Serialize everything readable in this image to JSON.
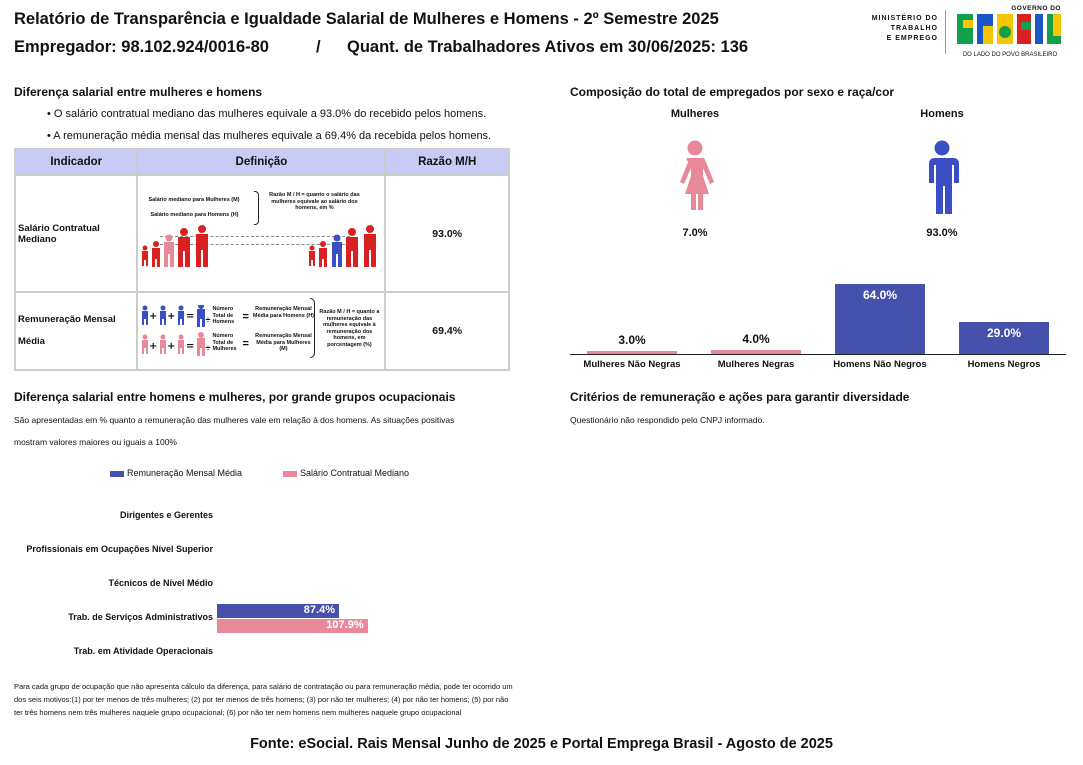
{
  "header": {
    "title": "Relatório de Transparência e Igualdade Salarial de Mulheres e Homens - 2º Semestre 2025",
    "employer": "Empregador: 98.102.924/0016-80",
    "separator": "/",
    "workers": "Quant. de Trabalhadores Ativos em 30/06/2025: 136"
  },
  "logos": {
    "ministry_line1": "MINISTÉRIO DO",
    "ministry_line2": "TRABALHO",
    "ministry_line3": "E EMPREGO",
    "gov_top": "GOVERNO DO",
    "gov_word": "BRASIL",
    "gov_bottom": "DO LADO DO POVO BRASILEIRO",
    "colors": {
      "green": "#12a04a",
      "yellow": "#f6c400",
      "blue": "#1b56c6",
      "red": "#d92121"
    }
  },
  "wage_gap": {
    "title": "Diferença salarial entre mulheres e homens",
    "bullet1": "• O salário contratual mediano das mulheres equivale a 93.0% do recebido pelos homens.",
    "bullet2": "• A remuneração média mensal das mulheres equivale a 69.4% da recebida pelos homens.",
    "table": {
      "headers": [
        "Indicador",
        "Definição",
        "Razão M/H"
      ],
      "rows": [
        {
          "indicator": "Salário Contratual Mediano",
          "ratio": "93.0%",
          "def_line1": "Salário mediano para Mulheres (M)",
          "def_line2": "Salário mediano para Homens (H)",
          "def_note": "Razão M / H = quanto o salário das mulheres equivale ao salário dos homens, em %"
        },
        {
          "indicator_line1": "Remuneração Mensal",
          "indicator_line2": "Média",
          "ratio": "69.4%",
          "def_num": "Número Total de Homens",
          "def_eq": "=",
          "def_div": "÷",
          "def_plus": "+",
          "def_h": "Remuneração Mensal Média para Homens (H)",
          "def_num_f": "Número Total de Mulheres",
          "def_m": "Remuneração Mensal Média para Mulheres (M)",
          "def_note": "Razão M / H = quanto a remuneração das mulheres equivale à remuneração dos homens, em porcentagem (%)"
        }
      ]
    }
  },
  "composition": {
    "title": "Composição do total de empregados por sexo e raça/cor",
    "women_label": "Mulheres",
    "men_label": "Homens",
    "women_pct": "7.0%",
    "men_pct": "93.0%",
    "colors": {
      "women": "#e8899a",
      "men": "#3a4fc4",
      "bars": "#4551aa",
      "women_bars": "#e8899a"
    },
    "chart_data": {
      "type": "bar",
      "categories": [
        "Mulheres Não Negras",
        "Mulheres Negras",
        "Homens Não Negros",
        "Homens Negros"
      ],
      "values": [
        3.0,
        4.0,
        64.0,
        29.0
      ],
      "labels": [
        "3.0%",
        "4.0%",
        "64.0%",
        "29.0%"
      ]
    }
  },
  "occupational": {
    "title": "Diferença salarial entre homens e mulheres, por grande grupos ocupacionais",
    "desc1": "São apresentadas em % quanto a remuneração das mulheres vale em relação à dos homens. As situações positivas",
    "desc2": "mostram valores maiores ou iguais a 100%",
    "legend_avg": "Remuneração Mensal Média",
    "legend_median": "Salário Contratual Mediano",
    "chart_data": {
      "type": "bar",
      "categories": [
        "Dirigentes e Gerentes",
        "Profissionais em Ocupações Nível Superior",
        "Técnicos de Nível Médio",
        "Trab. de Serviços Administrativos",
        "Trab. em Atividade Operacionais"
      ],
      "series": [
        {
          "name": "Remuneração Mensal Média",
          "values": [
            null,
            null,
            null,
            87.4,
            null
          ],
          "labels": [
            "",
            "",
            "",
            "87.4%",
            ""
          ]
        },
        {
          "name": "Salário Contratual Mediano",
          "values": [
            null,
            null,
            null,
            107.9,
            null
          ],
          "labels": [
            "",
            "",
            "",
            "107.9%",
            ""
          ]
        }
      ]
    },
    "footnote": "Para cada grupo de ocupação que não apresenta cálculo da diferença, para salário de contratação ou para remuneração média, pode ter ocorrido um dos seis motivos:(1) por ter menos de três mulheres; (2) por ter menos de três homens; (3) por não ter mulheres; (4) por não ter homens; (5) por não ter três homens nem três mulheres naquele grupo ocupacional; (6) por não ter nem homens nem mulheres naquele grupo ocupacional"
  },
  "criteria": {
    "title": "Critérios de remuneração e ações para garantir diversidade",
    "text": "Questionário não respondido pelo CNPJ informado."
  },
  "footer": {
    "source": "Fonte: eSocial. Rais Mensal Junho de 2025 e Portal Emprega Brasil - Agosto de 2025"
  }
}
